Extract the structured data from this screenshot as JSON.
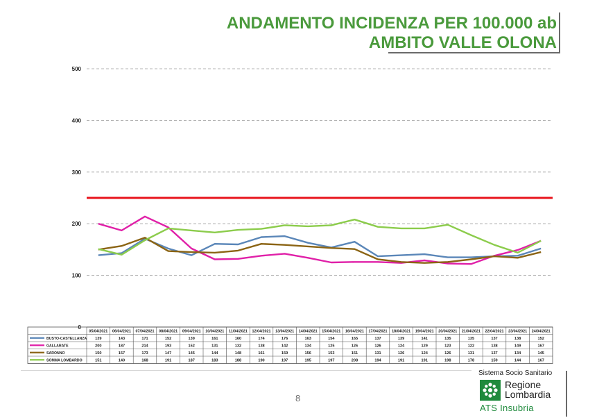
{
  "header": {
    "title_line1": "ANDAMENTO INCIDENZA PER 100.000 ab",
    "title_line2": "AMBITO VALLE OLONA"
  },
  "footer": {
    "page_number": "8",
    "logo": {
      "system": "Sistema Socio Sanitario",
      "region_line1": "Regione",
      "region_line2": "Lombardia",
      "agency": "ATS Insubria"
    }
  },
  "chart_data": {
    "type": "line",
    "ylim": [
      0,
      500
    ],
    "yticks": [
      0,
      100,
      200,
      300,
      400,
      500
    ],
    "grid": true,
    "threshold": 250,
    "categories": [
      "05/04/2021",
      "06/04/2021",
      "07/04/2021",
      "08/04/2021",
      "09/04/2021",
      "10/04/2021",
      "11/04/2021",
      "12/04/2021",
      "13/04/2021",
      "14/04/2021",
      "15/04/2021",
      "16/04/2021",
      "17/04/2021",
      "18/04/2021",
      "19/04/2021",
      "20/04/2021",
      "21/04/2021",
      "22/04/2021",
      "23/04/2021",
      "24/04/2021"
    ],
    "series": [
      {
        "name": "BUSTO-CASTELLANZA",
        "color": "#5a86b8",
        "values": [
          139,
          143,
          171,
          152,
          139,
          161,
          160,
          174,
          176,
          163,
          154,
          165,
          137,
          139,
          141,
          135,
          135,
          137,
          138,
          152
        ]
      },
      {
        "name": "GALLARATE",
        "color": "#e020a8",
        "values": [
          200,
          187,
          214,
          193,
          152,
          131,
          132,
          138,
          142,
          134,
          125,
          126,
          126,
          124,
          129,
          123,
          122,
          138,
          149,
          167
        ]
      },
      {
        "name": "SARONNO",
        "color": "#8b6414",
        "values": [
          150,
          157,
          173,
          147,
          145,
          144,
          148,
          161,
          159,
          156,
          153,
          151,
          131,
          126,
          124,
          126,
          131,
          137,
          134,
          145
        ]
      },
      {
        "name": "SOMMA LOMBARDO",
        "color": "#8ccc4c",
        "values": [
          151,
          140,
          168,
          191,
          187,
          183,
          188,
          190,
          197,
          195,
          197,
          208,
          194,
          191,
          191,
          198,
          178,
          159,
          144,
          167
        ]
      }
    ]
  }
}
